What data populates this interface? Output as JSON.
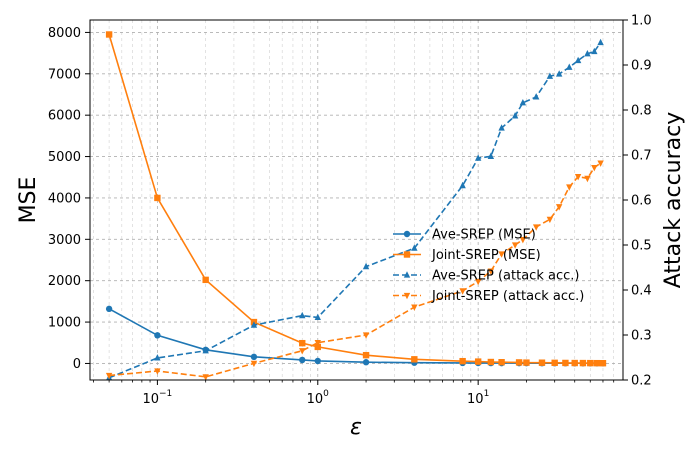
{
  "chart_data": {
    "type": "line",
    "xlabel": "ε",
    "ylabel": "MSE",
    "y2label": "Attack accuracy",
    "xscale": "log",
    "xlim": [
      0.038,
      80
    ],
    "ylim": [
      -400,
      8300
    ],
    "y2lim": [
      0.2,
      1.0
    ],
    "grid": true,
    "legend_loc": "center-right",
    "x_ticks": [
      0.1,
      1,
      10
    ],
    "x_tick_labels": [
      "10",
      "10",
      "10"
    ],
    "x_tick_exponents": [
      "−1",
      "0",
      "1"
    ],
    "y_ticks": [
      0,
      1000,
      2000,
      3000,
      4000,
      5000,
      6000,
      7000,
      8000
    ],
    "y_tick_labels": [
      "0",
      "1000",
      "2000",
      "3000",
      "4000",
      "5000",
      "6000",
      "7000",
      "8000"
    ],
    "y2_ticks": [
      0.2,
      0.3,
      0.4,
      0.5,
      0.6,
      0.7,
      0.8,
      0.9,
      1.0
    ],
    "y2_tick_labels": [
      "0.2",
      "0.3",
      "0.4",
      "0.5",
      "0.6",
      "0.7",
      "0.8",
      "0.9",
      "1.0"
    ],
    "series": [
      {
        "name": "Ave-SREP (MSE)",
        "axis": "left",
        "color": "#1f77b4",
        "linestyle": "solid",
        "marker": "circle",
        "x": [
          0.05,
          0.1,
          0.2,
          0.4,
          0.8,
          1,
          2,
          4,
          8,
          10,
          12,
          14,
          18,
          20,
          25,
          30,
          35,
          40,
          45,
          50,
          55,
          60
        ],
        "y": [
          1320,
          680,
          330,
          160,
          85,
          60,
          30,
          18,
          12,
          10,
          9,
          8,
          7,
          7,
          6,
          6,
          6,
          5,
          5,
          5,
          5,
          5
        ]
      },
      {
        "name": "Joint-SREP (MSE)",
        "axis": "left",
        "color": "#ff7f0e",
        "linestyle": "solid",
        "marker": "square",
        "x": [
          0.05,
          0.1,
          0.2,
          0.4,
          0.8,
          1,
          2,
          4,
          8,
          10,
          12,
          14,
          18,
          20,
          25,
          30,
          35,
          40,
          45,
          50,
          55,
          60
        ],
        "y": [
          7950,
          4000,
          2020,
          1000,
          490,
          400,
          200,
          100,
          55,
          45,
          35,
          30,
          25,
          20,
          18,
          15,
          12,
          10,
          9,
          8,
          7,
          6
        ]
      },
      {
        "name": "Ave-SREP (attack acc.)",
        "axis": "right",
        "color": "#1f77b4",
        "linestyle": "dashed",
        "marker": "triangle-up",
        "x": [
          0.05,
          0.1,
          0.2,
          0.4,
          0.8,
          1,
          2,
          4,
          8,
          10,
          12,
          14,
          17,
          19,
          23,
          28,
          32,
          37,
          42,
          48,
          53,
          58
        ],
        "y": [
          0.205,
          0.249,
          0.265,
          0.322,
          0.343,
          0.339,
          0.452,
          0.493,
          0.632,
          0.693,
          0.697,
          0.76,
          0.787,
          0.816,
          0.829,
          0.875,
          0.88,
          0.895,
          0.91,
          0.925,
          0.93,
          0.95
        ]
      },
      {
        "name": "Joint-SREP (attack acc.)",
        "axis": "right",
        "color": "#ff7f0e",
        "linestyle": "dashed",
        "marker": "triangle-down",
        "x": [
          0.05,
          0.1,
          0.2,
          0.4,
          0.8,
          1,
          2,
          4,
          8,
          10,
          12,
          14,
          17,
          19,
          23,
          28,
          32,
          37,
          42,
          48,
          53,
          58
        ],
        "y": [
          0.21,
          0.22,
          0.207,
          0.237,
          0.265,
          0.283,
          0.3,
          0.362,
          0.398,
          0.419,
          0.442,
          0.48,
          0.5,
          0.512,
          0.54,
          0.557,
          0.585,
          0.629,
          0.652,
          0.648,
          0.672,
          0.682
        ]
      }
    ]
  }
}
